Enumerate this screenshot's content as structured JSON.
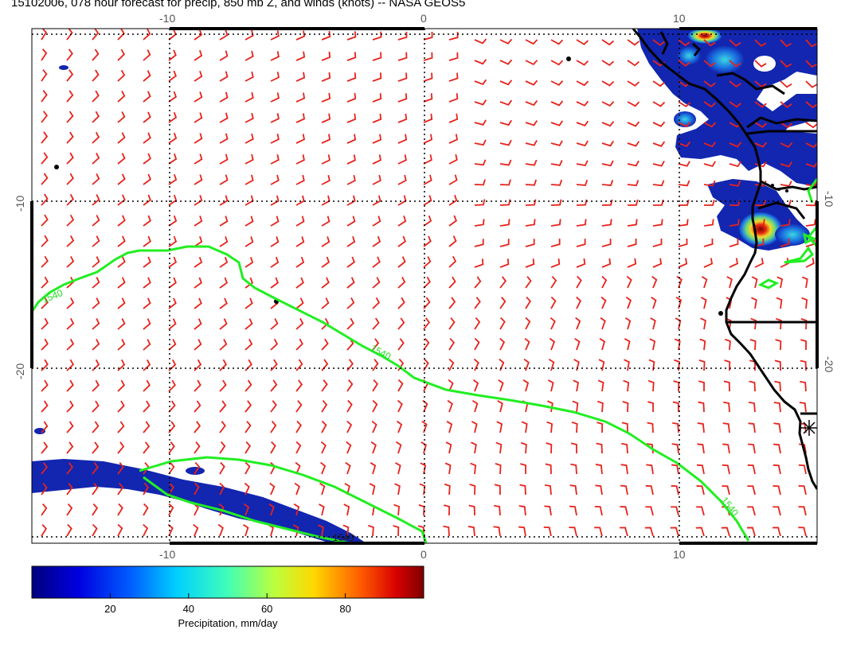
{
  "title": "15102006, 078 hour forecast for precip, 850 mb Z, and winds (knots) -- NASA GEOS5",
  "map": {
    "lon_ticks": [
      "-10",
      "0",
      "10"
    ],
    "lat_ticks": [
      "-10",
      "-20"
    ],
    "contour_label": "1540",
    "colors": {
      "wind_barbs": "#e8221b",
      "height_contour": "#22ee22",
      "coastline": "#000000",
      "grid": "#000000"
    }
  },
  "colorbar": {
    "label": "Precipitation, mm/day",
    "ticks": [
      "20",
      "40",
      "60",
      "80"
    ],
    "tick_values": [
      20,
      40,
      60,
      80
    ],
    "range": [
      0,
      100
    ],
    "colormap": "jet"
  }
}
